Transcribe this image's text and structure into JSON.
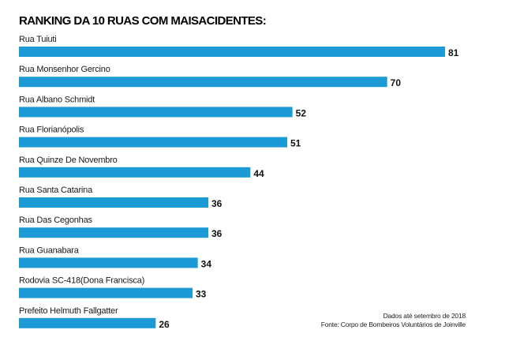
{
  "chart_data": {
    "type": "bar",
    "orientation": "horizontal",
    "title": "RANKING DA 10 RUAS COM MAISACIDENTES:",
    "categories": [
      "Rua Tuiuti",
      "Rua Monsenhor Gercino",
      "Rua Albano Schmidt",
      "Rua Florianópolis",
      "Rua Quinze De Novembro",
      "Rua Santa Catarina",
      "Rua Das Cegonhas",
      "Rua Guanabara",
      "Rodovia SC-418(Dona Francisca)",
      "Prefeito Helmuth Fallgatter"
    ],
    "values": [
      81,
      70,
      52,
      51,
      44,
      36,
      36,
      34,
      33,
      26
    ],
    "bar_color": "#1b9ad6",
    "grid": false,
    "legend": "none"
  },
  "footnote": {
    "line1": "Dados até setembro de 2018",
    "line2": "Fonte: Corpo de Bombeiros Voluntários de Joinville"
  }
}
